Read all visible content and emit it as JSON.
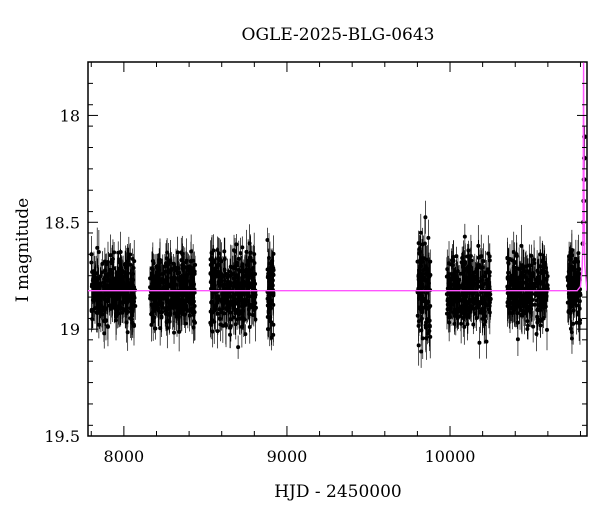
{
  "chart_data": {
    "type": "scatter",
    "title": "OGLE-2025-BLG-0643",
    "xlabel": "HJD - 2450000",
    "ylabel": "I magnitude",
    "xlim": [
      7780,
      10840
    ],
    "ylim": [
      19.5,
      17.75
    ],
    "y_inverted": true,
    "x_ticks": [
      8000,
      9000,
      10000
    ],
    "y_ticks": [
      18,
      18.5,
      19,
      19.5
    ],
    "x_minor_step": 200,
    "y_minor_step": 0.1,
    "grid": false,
    "colors": {
      "data": "#000000",
      "model": "#ff55ff"
    },
    "series": [
      {
        "kind": "observations_with_errorbars",
        "seasons": [
          {
            "start": 7800,
            "end": 8070,
            "mean_mag": 18.82,
            "spread": 0.08,
            "err": 0.07
          },
          {
            "start": 8160,
            "end": 8440,
            "mean_mag": 18.82,
            "spread": 0.08,
            "err": 0.07
          },
          {
            "start": 8530,
            "end": 8810,
            "mean_mag": 18.82,
            "spread": 0.09,
            "err": 0.07
          },
          {
            "start": 8880,
            "end": 8920,
            "mean_mag": 18.82,
            "spread": 0.1,
            "err": 0.08
          },
          {
            "start": 9800,
            "end": 9880,
            "mean_mag": 18.84,
            "spread": 0.12,
            "err": 0.08
          },
          {
            "start": 9980,
            "end": 10250,
            "mean_mag": 18.82,
            "spread": 0.08,
            "err": 0.07
          },
          {
            "start": 10350,
            "end": 10600,
            "mean_mag": 18.82,
            "spread": 0.08,
            "err": 0.07
          },
          {
            "start": 10720,
            "end": 10800,
            "mean_mag": 18.82,
            "spread": 0.09,
            "err": 0.07
          }
        ],
        "rising_points": [
          {
            "x": 10815,
            "y": 18.6
          },
          {
            "x": 10818,
            "y": 18.5
          },
          {
            "x": 10820,
            "y": 18.4
          },
          {
            "x": 10822,
            "y": 18.3
          },
          {
            "x": 10824,
            "y": 18.2
          },
          {
            "x": 10825,
            "y": 18.1
          }
        ]
      },
      {
        "kind": "model_curve",
        "points": [
          {
            "x": 7780,
            "y": 18.82
          },
          {
            "x": 10780,
            "y": 18.82
          },
          {
            "x": 10800,
            "y": 18.8
          },
          {
            "x": 10810,
            "y": 18.72
          },
          {
            "x": 10815,
            "y": 18.6
          },
          {
            "x": 10817,
            "y": 18.4
          },
          {
            "x": 10818,
            "y": 18.0
          },
          {
            "x": 10819,
            "y": 17.75
          },
          {
            "x": 10820,
            "y": 18.0
          },
          {
            "x": 10822,
            "y": 18.4
          },
          {
            "x": 10826,
            "y": 18.7
          },
          {
            "x": 10840,
            "y": 18.82
          }
        ]
      }
    ]
  }
}
